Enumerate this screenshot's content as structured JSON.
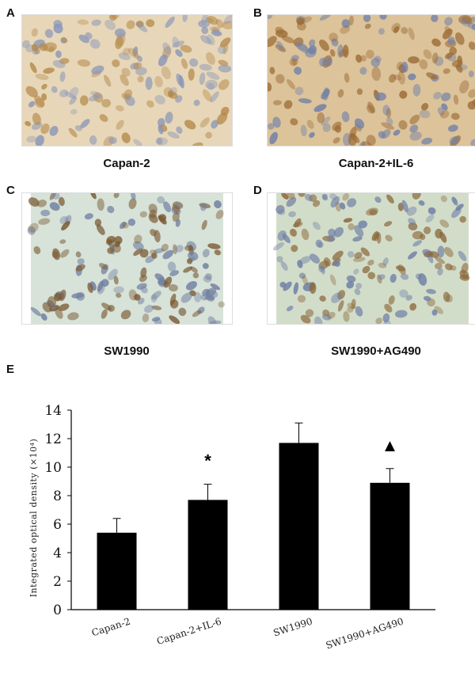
{
  "panels": [
    {
      "letter": "A",
      "caption": "Capan-2",
      "bg": "#e7d7b8",
      "stain": "#b58a4c",
      "blue": "#8a96b8"
    },
    {
      "letter": "B",
      "caption": "Capan-2+IL-6",
      "bg": "#dcc39a",
      "stain": "#9b6a34",
      "blue": "#6f7fa8"
    },
    {
      "letter": "C",
      "caption": "SW1990",
      "bg": "#d7e2d8",
      "stain": "#7a5a34",
      "blue": "#707ea0"
    },
    {
      "letter": "D",
      "caption": "SW1990+AG490",
      "bg": "#d2ddc9",
      "stain": "#8a6538",
      "blue": "#6e7da6"
    }
  ],
  "chart_label": "E",
  "chart_data": {
    "type": "bar",
    "categories": [
      "Capan-2",
      "Capan-2+IL-6",
      "SW1990",
      "SW1990+AG490"
    ],
    "values": [
      5.4,
      7.7,
      11.7,
      8.9
    ],
    "errors": [
      1.0,
      1.1,
      1.4,
      1.0
    ],
    "markers": [
      "",
      "*",
      "",
      "▲"
    ],
    "ylabel": "Integrated optical density (×10⁴)",
    "ylim": [
      0,
      14
    ],
    "yticks": [
      0,
      2,
      4,
      6,
      8,
      10,
      12,
      14
    ],
    "bar_color": "#000000"
  }
}
